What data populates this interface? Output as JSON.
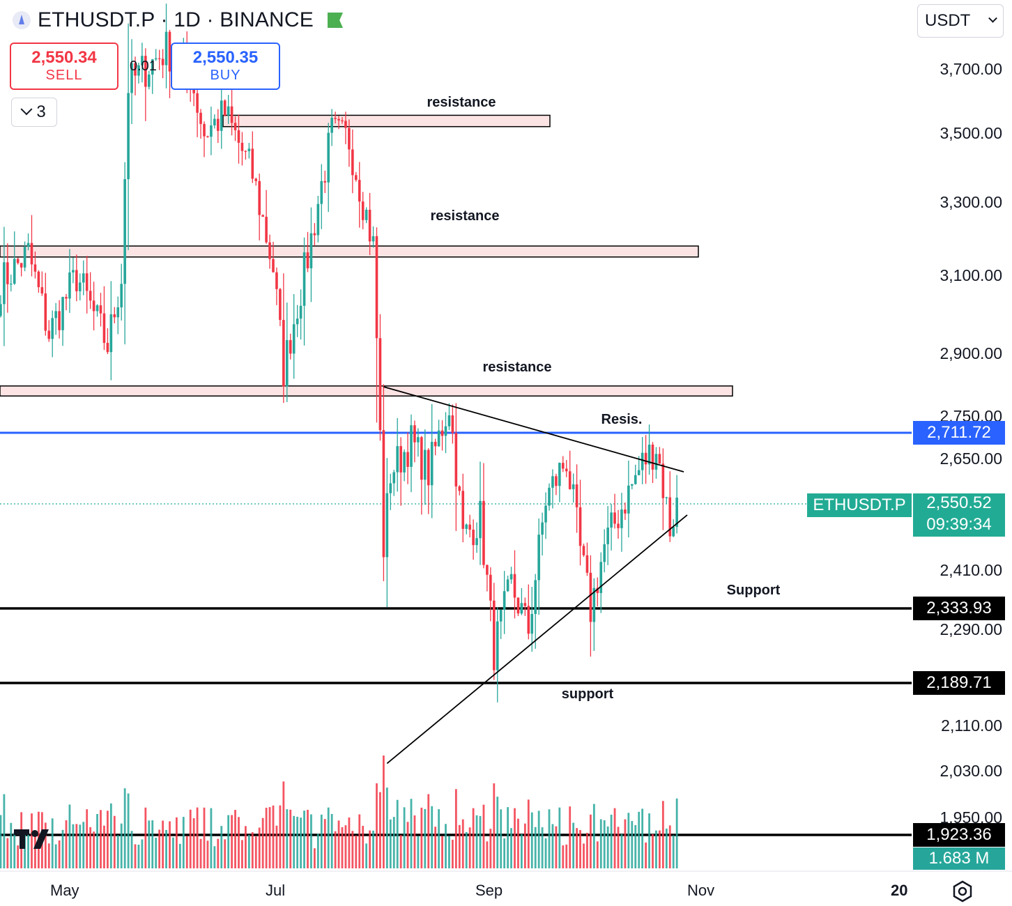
{
  "header": {
    "symbol_title": "ETHUSDT.P · 1D · BINANCE",
    "sell_price": "2,550.34",
    "sell_label": "SELL",
    "buy_price": "2,550.35",
    "buy_label": "BUY",
    "spread": "0.01",
    "indicators_count": "3",
    "currency": "USDT",
    "market_status_color": "#4caf50"
  },
  "colors": {
    "up": "#26a69a",
    "down": "#f23645",
    "zone_fill": "#fde4e4",
    "current_price": "#22ab94",
    "blue_line": "#2962ff"
  },
  "labels": {
    "symbol_price_tag": "ETHUSDT.P",
    "current_price": "2,550.52",
    "countdown": "09:39:34",
    "blue_level": "2,711.72",
    "support_1": "2,333.93",
    "support_2": "2,189.71",
    "bottom_level": "1,923.36",
    "volume": "1.683 M"
  },
  "chart_data": {
    "type": "candlestick",
    "symbol": "ETHUSDT.P",
    "interval": "1D",
    "exchange": "BINANCE",
    "y_axis_ticks": [
      "3,700.00",
      "3,500.00",
      "3,300.00",
      "3,100.00",
      "2,900.00",
      "2,750.00",
      "2,650.00",
      "2,410.00",
      "2,290.00",
      "2,110.00",
      "2,030.00",
      "1,950.00"
    ],
    "x_axis_labels": [
      "May",
      "Jul",
      "Sep",
      "Nov",
      "20"
    ],
    "resistance_zones": [
      {
        "label": "resistance",
        "low": 3520,
        "high": 3555
      },
      {
        "label": "resistance",
        "low": 3150,
        "high": 3180
      },
      {
        "label": "resistance",
        "low": 2798,
        "high": 2822
      }
    ],
    "horizontal_levels": [
      {
        "value": 2711.72,
        "color": "#2962ff"
      },
      {
        "value": 2333.93,
        "color": "#000000"
      },
      {
        "value": 2189.71,
        "color": "#000000"
      },
      {
        "value": 1923.36,
        "color": "#000000"
      }
    ],
    "trendlines": [
      {
        "label": "Resis.",
        "from": {
          "date": "2024-08-05",
          "price": 2820
        },
        "to": {
          "date": "2024-10-31",
          "price": 2621
        }
      },
      {
        "label": "support",
        "from": {
          "date": "2024-08-06",
          "price": 2043
        },
        "to": {
          "date": "2024-11-01",
          "price": 2527
        }
      }
    ],
    "annotations": [
      "resistance",
      "resistance",
      "resistance",
      "Resis.",
      "Support",
      "support"
    ],
    "price_axis_labels": {
      "current": 2550.52,
      "countdown": "09:39:34",
      "volume": "1.683 M"
    },
    "candle_path": [
      {
        "date": "2024-04-16",
        "close": 3080
      },
      {
        "date": "2024-04-24",
        "close": 3160
      },
      {
        "date": "2024-04-30",
        "close": 2950
      },
      {
        "date": "2024-05-08",
        "close": 3100
      },
      {
        "date": "2024-05-17",
        "close": 2920
      },
      {
        "date": "2024-05-21",
        "close": 3100
      },
      {
        "date": "2024-05-23",
        "close": 3650
      },
      {
        "date": "2024-06-03",
        "close": 3760
      },
      {
        "date": "2024-06-10",
        "close": 3680
      },
      {
        "date": "2024-06-14",
        "close": 3500
      },
      {
        "date": "2024-06-20",
        "close": 3560
      },
      {
        "date": "2024-06-28",
        "close": 3380
      },
      {
        "date": "2024-07-04",
        "close": 3120
      },
      {
        "date": "2024-07-07",
        "close": 2860
      },
      {
        "date": "2024-07-14",
        "close": 3150
      },
      {
        "date": "2024-07-21",
        "close": 3500
      },
      {
        "date": "2024-07-26",
        "close": 3480
      },
      {
        "date": "2024-08-02",
        "close": 3180
      },
      {
        "date": "2024-08-05",
        "close": 2460
      },
      {
        "date": "2024-08-07",
        "close": 2620
      },
      {
        "date": "2024-08-13",
        "close": 2690
      },
      {
        "date": "2024-08-18",
        "close": 2620
      },
      {
        "date": "2024-08-24",
        "close": 2780
      },
      {
        "date": "2024-08-28",
        "close": 2480
      },
      {
        "date": "2024-09-02",
        "close": 2520
      },
      {
        "date": "2024-09-06",
        "close": 2250
      },
      {
        "date": "2024-09-11",
        "close": 2380
      },
      {
        "date": "2024-09-16",
        "close": 2290
      },
      {
        "date": "2024-09-21",
        "close": 2560
      },
      {
        "date": "2024-09-27",
        "close": 2650
      },
      {
        "date": "2024-10-01",
        "close": 2450
      },
      {
        "date": "2024-10-04",
        "close": 2330
      },
      {
        "date": "2024-10-08",
        "close": 2460
      },
      {
        "date": "2024-10-14",
        "close": 2560
      },
      {
        "date": "2024-10-19",
        "close": 2640
      },
      {
        "date": "2024-10-23",
        "close": 2680
      },
      {
        "date": "2024-10-27",
        "close": 2500
      },
      {
        "date": "2024-10-29",
        "close": 2550
      }
    ]
  }
}
